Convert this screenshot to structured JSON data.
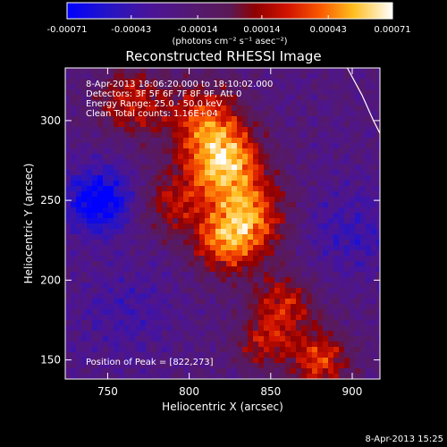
{
  "chart_data": {
    "type": "heatmap",
    "title": "Reconstructed RHESSI Image",
    "xlabel": "Heliocentric X (arcsec)",
    "ylabel": "Heliocentric Y (arcsec)",
    "xlim": [
      724,
      917
    ],
    "ylim": [
      138,
      333
    ],
    "x_ticks": [
      750,
      800,
      850,
      900
    ],
    "y_ticks": [
      150,
      200,
      250,
      300
    ],
    "x_tick_labels": [
      "750",
      "800",
      "850",
      "900"
    ],
    "y_tick_labels": [
      "150",
      "200",
      "250",
      "300"
    ],
    "colorbar": {
      "range": [
        -0.00071,
        0.00071
      ],
      "ticks": [
        -0.00071,
        -0.00043,
        -0.00014,
        0.00014,
        0.00043,
        0.00071
      ],
      "tick_labels": [
        "-0.00071",
        "-0.00043",
        "-0.00014",
        "0.00014",
        "0.00043",
        "0.00071"
      ],
      "units": "(photons cm⁻² s⁻¹ asec⁻²)"
    },
    "info_lines": [
      "8-Apr-2013 18:06:20.000 to 18:10:02.000",
      "Detectors: 3F 5F 6F 7F 8F 9F, Att 0",
      "Energy Range: 25.0 - 50.0 keV",
      "Clean     Total counts: 1.16E+04"
    ],
    "peak_label": "Position of Peak = [822,273]",
    "peak": [
      822,
      273
    ],
    "sources": [
      {
        "x": 822,
        "y": 273,
        "sigma": 16,
        "amp": 0.00071
      },
      {
        "x": 837,
        "y": 240,
        "sigma": 17,
        "amp": 0.00058
      },
      {
        "x": 822,
        "y": 222,
        "sigma": 14,
        "amp": 0.00048
      },
      {
        "x": 810,
        "y": 300,
        "sigma": 17,
        "amp": 0.0005
      },
      {
        "x": 858,
        "y": 185,
        "sigma": 14,
        "amp": 0.00042
      },
      {
        "x": 880,
        "y": 150,
        "sigma": 14,
        "amp": 0.0005
      },
      {
        "x": 765,
        "y": 312,
        "sigma": 15,
        "amp": 0.00044
      },
      {
        "x": 790,
        "y": 248,
        "sigma": 15,
        "amp": 0.00036
      },
      {
        "x": 845,
        "y": 160,
        "sigma": 12,
        "amp": 0.00036
      },
      {
        "x": 745,
        "y": 250,
        "sigma": 14,
        "amp": -0.00058
      },
      {
        "x": 900,
        "y": 230,
        "sigma": 20,
        "amp": -0.00022
      },
      {
        "x": 760,
        "y": 180,
        "sigma": 20,
        "amp": -0.00018
      }
    ],
    "limb_curve": [
      [
        897,
        333
      ],
      [
        906,
        316
      ],
      [
        913,
        300
      ],
      [
        917,
        292
      ]
    ]
  },
  "footer": {
    "timestamp": "8-Apr-2013 15:25"
  }
}
